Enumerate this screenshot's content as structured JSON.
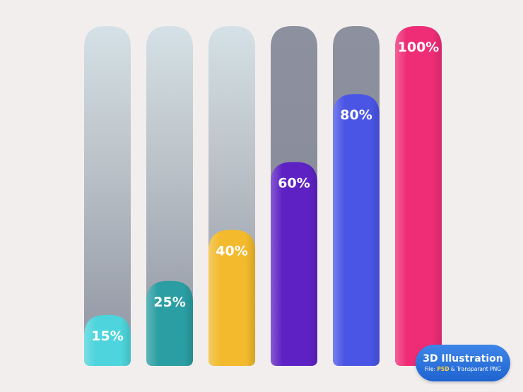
{
  "chart_data": {
    "type": "bar",
    "categories": [
      "",
      "",
      "",
      "",
      "",
      ""
    ],
    "values": [
      15,
      25,
      40,
      60,
      80,
      100
    ],
    "value_labels": [
      "15%",
      "25%",
      "40%",
      "60%",
      "80%",
      "100%"
    ],
    "unit": "%",
    "ylim": [
      0,
      100
    ],
    "title": "",
    "xlabel": "",
    "ylabel": "",
    "grid": false,
    "colors": [
      "#4dd4dc",
      "#2a9ea3",
      "#f2ba2c",
      "#5e22c4",
      "#4a55e6",
      "#ef2c76"
    ]
  },
  "badge": {
    "title": "3D Illustration",
    "prefix": "File: ",
    "highlight": "PSD",
    "suffix": " & Transparant PNG"
  }
}
